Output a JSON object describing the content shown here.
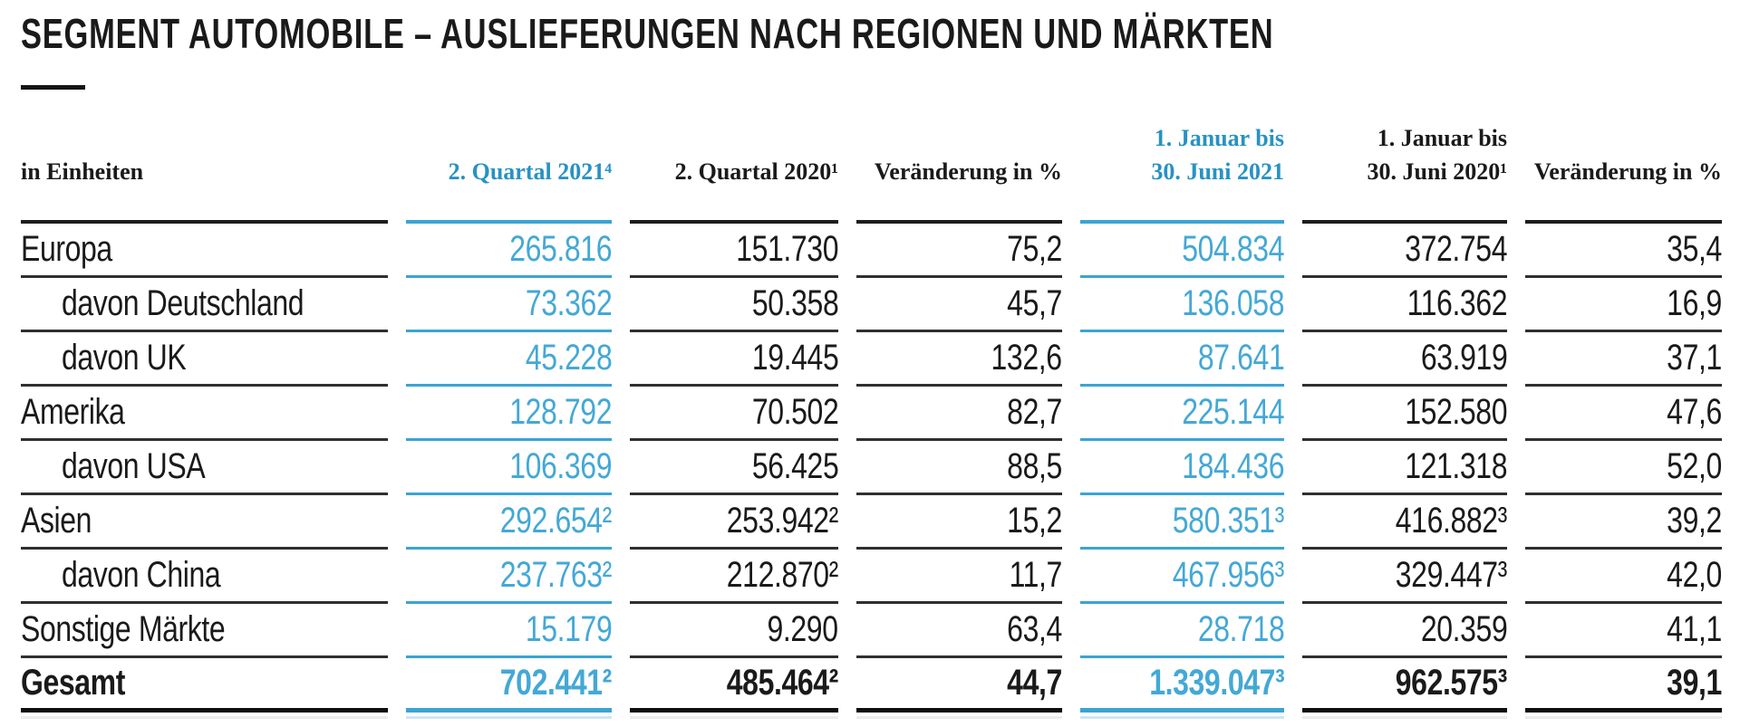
{
  "page": {
    "title": "SEGMENT AUTOMOBILE – AUSLIEFERUNGEN NACH REGIONEN UND MÄRKTEN"
  },
  "colors": {
    "accent_number_blue": "#44a8d6",
    "accent_header_blue": "#2892c4",
    "accent_rule_blue": "#3aa4d4",
    "text_black": "#1a1a1a",
    "rule_black": "#2f2f2f"
  },
  "table": {
    "unit_label": "in Einheiten",
    "columns": [
      {
        "id": "q2-2021",
        "lines": [
          "2. Quartal 2021⁴",
          ""
        ],
        "highlight": true
      },
      {
        "id": "q2-2020",
        "lines": [
          "2. Quartal 2020¹",
          ""
        ],
        "highlight": false
      },
      {
        "id": "chg-quartal",
        "lines": [
          "Veränderung in %",
          ""
        ],
        "highlight": false
      },
      {
        "id": "hy-2021",
        "lines": [
          "1. Januar bis",
          "30. Juni 2021"
        ],
        "highlight": true
      },
      {
        "id": "hy-2020",
        "lines": [
          "1. Januar bis",
          "30. Juni 2020¹"
        ],
        "highlight": false
      },
      {
        "id": "chg-halbjahr",
        "lines": [
          "Veränderung in %",
          ""
        ],
        "highlight": false
      }
    ],
    "rows": [
      {
        "label": "Europa",
        "indent": false,
        "total": false,
        "values": [
          "265.816",
          "151.730",
          "75,2",
          "504.834",
          "372.754",
          "35,4"
        ]
      },
      {
        "label": "davon Deutschland",
        "indent": true,
        "total": false,
        "values": [
          "73.362",
          "50.358",
          "45,7",
          "136.058",
          "116.362",
          "16,9"
        ]
      },
      {
        "label": "davon UK",
        "indent": true,
        "total": false,
        "values": [
          "45.228",
          "19.445",
          "132,6",
          "87.641",
          "63.919",
          "37,1"
        ]
      },
      {
        "label": "Amerika",
        "indent": false,
        "total": false,
        "values": [
          "128.792",
          "70.502",
          "82,7",
          "225.144",
          "152.580",
          "47,6"
        ]
      },
      {
        "label": "davon USA",
        "indent": true,
        "total": false,
        "values": [
          "106.369",
          "56.425",
          "88,5",
          "184.436",
          "121.318",
          "52,0"
        ]
      },
      {
        "label": "Asien",
        "indent": false,
        "total": false,
        "values": [
          "292.654²",
          "253.942²",
          "15,2",
          "580.351³",
          "416.882³",
          "39,2"
        ]
      },
      {
        "label": "davon China",
        "indent": true,
        "total": false,
        "values": [
          "237.763²",
          "212.870²",
          "11,7",
          "467.956³",
          "329.447³",
          "42,0"
        ]
      },
      {
        "label": "Sonstige Märkte",
        "indent": false,
        "total": false,
        "values": [
          "15.179",
          "9.290",
          "63,4",
          "28.718",
          "20.359",
          "41,1"
        ]
      },
      {
        "label": "Gesamt",
        "indent": false,
        "total": true,
        "values": [
          "702.441²",
          "485.464²",
          "44,7",
          "1.339.047³",
          "962.575³",
          "39,1"
        ]
      }
    ]
  }
}
